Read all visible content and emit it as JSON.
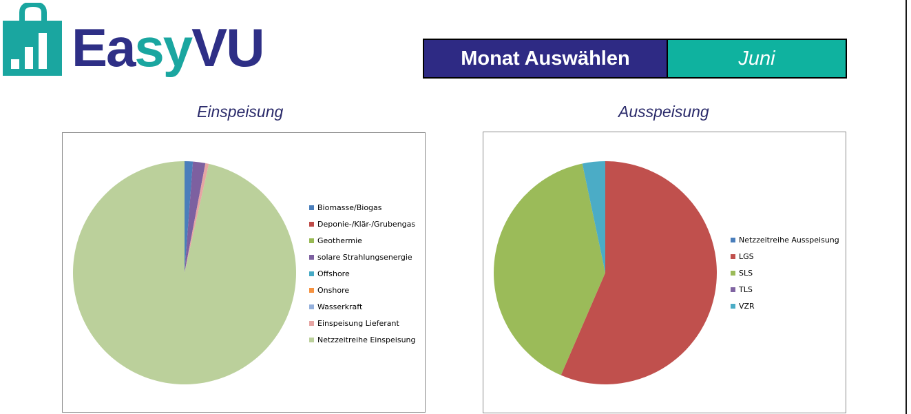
{
  "logo": {
    "text_part1": "Ea",
    "text_part2": "sy",
    "text_part3": "VU"
  },
  "month_selector": {
    "label": "Monat Auswählen",
    "value": "Juni"
  },
  "chart_data": [
    {
      "type": "pie",
      "title": "Einspeisung",
      "legend_position": "right",
      "categories": [
        "Biomasse/Biogas",
        "Deponie-/Klär-/Grubengas",
        "Geothermie",
        "solare Strahlungsenergie",
        "Offshore",
        "Onshore",
        "Wasserkraft",
        "Einspeisung Lieferant",
        "Netzzeitreihe Einspeisung"
      ],
      "values": [
        1.2,
        0,
        0,
        1.8,
        0,
        0,
        0,
        0.5,
        96.5
      ],
      "colors": [
        "#4a7ebb",
        "#be4b48",
        "#98b954",
        "#7d60a0",
        "#46aac5",
        "#f69240",
        "#94b0dc",
        "#e6a5a3",
        "#bbd09b"
      ]
    },
    {
      "type": "pie",
      "title": "Ausspeisung",
      "legend_position": "right",
      "categories": [
        "Netzzeitreihe Ausspeisung",
        "LGS",
        "SLS",
        "TLS",
        "VZR"
      ],
      "values": [
        0,
        56.5,
        40.2,
        0,
        3.3
      ],
      "colors": [
        "#4a7ebb",
        "#c0504d",
        "#9bbb59",
        "#8064a2",
        "#4bacc6"
      ]
    }
  ]
}
